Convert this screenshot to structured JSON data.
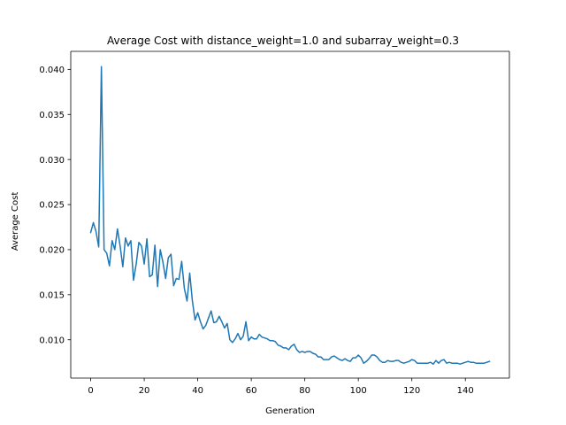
{
  "chart_data": {
    "type": "line",
    "title": "Average Cost with distance_weight=1.0 and subarray_weight=0.3",
    "xlabel": "Generation",
    "ylabel": "Average Cost",
    "xlim": [
      -7.45,
      156.45
    ],
    "ylim": [
      0.00575,
      0.042
    ],
    "x_ticks": [
      0,
      20,
      40,
      60,
      80,
      100,
      120,
      140
    ],
    "y_ticks": [
      0.01,
      0.015,
      0.02,
      0.025,
      0.03,
      0.035,
      0.04
    ],
    "x_tick_labels": [
      "0",
      "20",
      "40",
      "60",
      "80",
      "100",
      "120",
      "140"
    ],
    "y_tick_labels": [
      "0.010",
      "0.015",
      "0.020",
      "0.025",
      "0.030",
      "0.035",
      "0.040"
    ],
    "grid": false,
    "series": [
      {
        "color": "#1f77b4",
        "x": [
          0,
          1,
          2,
          3,
          4,
          5,
          6,
          7,
          8,
          9,
          10,
          11,
          12,
          13,
          14,
          15,
          16,
          17,
          18,
          19,
          20,
          21,
          22,
          23,
          24,
          25,
          26,
          27,
          28,
          29,
          30,
          31,
          32,
          33,
          34,
          35,
          36,
          37,
          38,
          39,
          40,
          41,
          42,
          43,
          44,
          45,
          46,
          47,
          48,
          49,
          50,
          51,
          52,
          53,
          54,
          55,
          56,
          57,
          58,
          59,
          60,
          61,
          62,
          63,
          64,
          65,
          66,
          67,
          68,
          69,
          70,
          71,
          72,
          73,
          74,
          75,
          76,
          77,
          78,
          79,
          80,
          81,
          82,
          83,
          84,
          85,
          86,
          87,
          88,
          89,
          90,
          91,
          92,
          93,
          94,
          95,
          96,
          97,
          98,
          99,
          100,
          101,
          102,
          103,
          104,
          105,
          106,
          107,
          108,
          109,
          110,
          111,
          112,
          113,
          114,
          115,
          116,
          117,
          118,
          119,
          120,
          121,
          122,
          123,
          124,
          125,
          126,
          127,
          128,
          129,
          130,
          131,
          132,
          133,
          134,
          135,
          136,
          137,
          138,
          139,
          140,
          141,
          142,
          143,
          144,
          145,
          146,
          147,
          148,
          149
        ],
        "y": [
          0.0219,
          0.023,
          0.022,
          0.0203,
          0.0403,
          0.02,
          0.0196,
          0.0182,
          0.021,
          0.02,
          0.0223,
          0.0204,
          0.0181,
          0.0213,
          0.0204,
          0.021,
          0.0166,
          0.0184,
          0.0208,
          0.0204,
          0.0184,
          0.0212,
          0.017,
          0.0172,
          0.0205,
          0.0159,
          0.02,
          0.0186,
          0.0168,
          0.0191,
          0.0195,
          0.016,
          0.0168,
          0.0167,
          0.0187,
          0.0157,
          0.0143,
          0.0174,
          0.0143,
          0.0122,
          0.013,
          0.012,
          0.0112,
          0.0116,
          0.0124,
          0.0132,
          0.0119,
          0.012,
          0.0126,
          0.012,
          0.0113,
          0.0118,
          0.01,
          0.0097,
          0.0101,
          0.0107,
          0.01,
          0.0104,
          0.012,
          0.0099,
          0.0103,
          0.0101,
          0.0101,
          0.0106,
          0.0103,
          0.0102,
          0.0101,
          0.0099,
          0.0099,
          0.0098,
          0.0094,
          0.0093,
          0.0091,
          0.0091,
          0.0089,
          0.0093,
          0.0095,
          0.0089,
          0.0086,
          0.0087,
          0.0086,
          0.0087,
          0.0087,
          0.0085,
          0.0084,
          0.0081,
          0.0081,
          0.0078,
          0.0078,
          0.0078,
          0.0081,
          0.0082,
          0.008,
          0.0078,
          0.0077,
          0.0079,
          0.0077,
          0.0076,
          0.008,
          0.008,
          0.0083,
          0.008,
          0.0074,
          0.0076,
          0.0079,
          0.0083,
          0.0083,
          0.0081,
          0.0077,
          0.0075,
          0.0075,
          0.0077,
          0.0076,
          0.0076,
          0.0077,
          0.0077,
          0.0075,
          0.0074,
          0.0075,
          0.0076,
          0.0078,
          0.0077,
          0.0074,
          0.0074,
          0.0074,
          0.0074,
          0.0074,
          0.0075,
          0.0073,
          0.0077,
          0.0074,
          0.0077,
          0.0078,
          0.0074,
          0.0075,
          0.0074,
          0.0074,
          0.0074,
          0.0073,
          0.0074,
          0.0075,
          0.0076,
          0.0075,
          0.0075,
          0.0074,
          0.0074,
          0.0074,
          0.0074,
          0.0075,
          0.0076
        ]
      }
    ]
  }
}
